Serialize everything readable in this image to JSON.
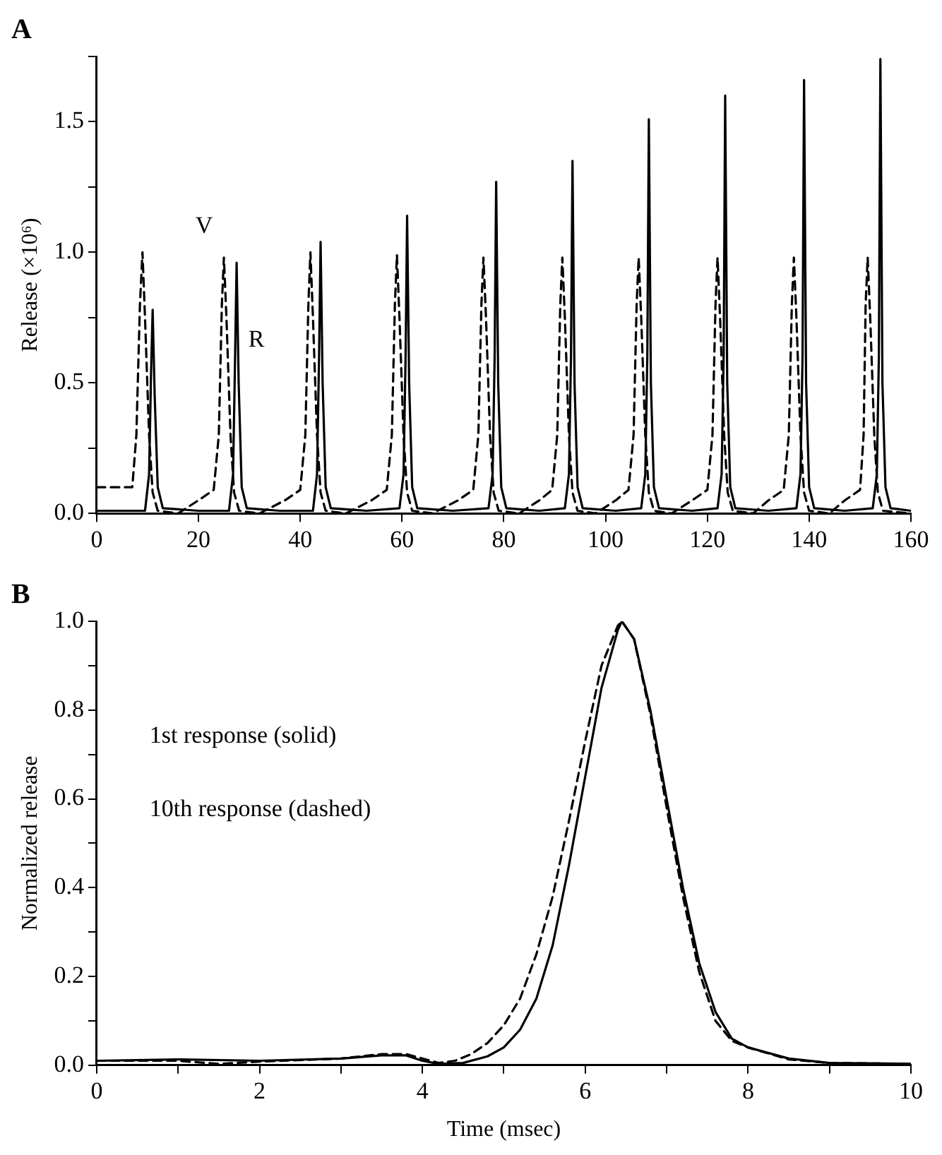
{
  "chart_data": [
    {
      "type": "line",
      "title": "A",
      "ylabel": "Release (×10⁶)",
      "xlim": [
        0,
        160
      ],
      "xticks": [
        0,
        20,
        40,
        60,
        80,
        100,
        120,
        140,
        160
      ],
      "ylim": [
        0,
        1.75
      ],
      "yticks": [
        {
          "value": 0,
          "label": "0.0"
        },
        {
          "value": 0.25,
          "label": null
        },
        0.5,
        {
          "value": 0.75,
          "label": null
        },
        {
          "value": 1,
          "label": "1.0"
        },
        {
          "value": 1.25,
          "label": null
        },
        1.5,
        {
          "value": 1.75,
          "label": null
        }
      ],
      "series": [
        {
          "name": "V",
          "color": "#000000",
          "line_style": "dashed",
          "x": [
            0,
            7,
            7.8,
            8.5,
            9,
            9.5,
            10.3,
            11,
            12,
            16,
            20,
            23,
            24,
            24.6,
            25,
            25.5,
            26.3,
            27,
            28,
            32,
            37,
            40,
            41,
            41.6,
            42,
            42.5,
            43.3,
            44,
            45,
            49,
            54,
            57,
            58,
            58.6,
            59,
            59.5,
            60.3,
            61,
            62,
            66,
            71,
            74,
            75,
            75.6,
            76,
            76.5,
            77.3,
            78,
            79,
            83,
            87,
            89.5,
            90.5,
            91.1,
            91.5,
            92,
            92.8,
            93.5,
            94.5,
            98,
            102,
            104.5,
            105.5,
            106.1,
            106.5,
            107,
            107.8,
            108.5,
            109.5,
            113,
            117,
            120,
            121,
            121.6,
            122,
            122.5,
            123.3,
            124,
            125,
            129,
            132,
            135,
            136,
            136.6,
            137,
            137.5,
            138.3,
            139,
            140,
            144,
            147,
            150,
            150.7,
            151.1,
            151.5,
            152,
            152.8,
            153.5,
            154.5,
            160
          ],
          "values": [
            0.1,
            0.1,
            0.3,
            0.8,
            1.0,
            0.75,
            0.3,
            0.08,
            0.01,
            0.0,
            0.05,
            0.09,
            0.3,
            0.8,
            0.98,
            0.75,
            0.3,
            0.08,
            0.01,
            0.0,
            0.05,
            0.09,
            0.3,
            0.8,
            1.0,
            0.75,
            0.3,
            0.08,
            0.01,
            0.0,
            0.05,
            0.09,
            0.3,
            0.8,
            0.99,
            0.75,
            0.3,
            0.08,
            0.01,
            0.0,
            0.05,
            0.09,
            0.3,
            0.8,
            0.98,
            0.75,
            0.3,
            0.08,
            0.01,
            0.0,
            0.05,
            0.09,
            0.3,
            0.8,
            0.98,
            0.75,
            0.3,
            0.08,
            0.01,
            0.0,
            0.05,
            0.09,
            0.3,
            0.8,
            0.98,
            0.75,
            0.3,
            0.08,
            0.01,
            0.0,
            0.05,
            0.09,
            0.3,
            0.8,
            0.98,
            0.75,
            0.3,
            0.08,
            0.01,
            0.0,
            0.05,
            0.09,
            0.3,
            0.8,
            0.98,
            0.75,
            0.3,
            0.08,
            0.01,
            0.0,
            0.05,
            0.09,
            0.3,
            0.8,
            0.98,
            0.75,
            0.3,
            0.08,
            0.01,
            0.0
          ]
        },
        {
          "name": "R",
          "color": "#000000",
          "line_style": "solid",
          "x": [
            0,
            9.5,
            10.3,
            10.7,
            11,
            11.4,
            12,
            13,
            20,
            26,
            26.8,
            27.2,
            27.5,
            27.9,
            28.5,
            29.5,
            36,
            42.5,
            43.3,
            43.7,
            44,
            44.4,
            45,
            46,
            53,
            59.5,
            60.3,
            60.7,
            61,
            61.4,
            62,
            63,
            70,
            77,
            77.8,
            78.2,
            78.5,
            78.9,
            79.5,
            80.5,
            87,
            92,
            92.8,
            93.2,
            93.5,
            93.9,
            94.5,
            95.5,
            102,
            107,
            107.8,
            108.2,
            108.5,
            108.9,
            109.5,
            110.5,
            117,
            122,
            122.8,
            123.2,
            123.5,
            123.9,
            124.5,
            125.5,
            132,
            137.5,
            138.3,
            138.7,
            139,
            139.4,
            140,
            141,
            147,
            152.5,
            153.3,
            153.7,
            154,
            154.4,
            155,
            156,
            160
          ],
          "values": [
            0.01,
            0.01,
            0.15,
            0.55,
            0.78,
            0.45,
            0.1,
            0.02,
            0.01,
            0.01,
            0.15,
            0.6,
            0.96,
            0.5,
            0.1,
            0.02,
            0.01,
            0.01,
            0.15,
            0.6,
            1.04,
            0.5,
            0.1,
            0.02,
            0.01,
            0.02,
            0.15,
            0.6,
            1.14,
            0.5,
            0.1,
            0.02,
            0.01,
            0.02,
            0.15,
            0.6,
            1.27,
            0.5,
            0.1,
            0.02,
            0.01,
            0.02,
            0.15,
            0.6,
            1.35,
            0.5,
            0.1,
            0.02,
            0.01,
            0.02,
            0.15,
            0.6,
            1.51,
            0.5,
            0.1,
            0.02,
            0.01,
            0.02,
            0.15,
            0.6,
            1.6,
            0.5,
            0.1,
            0.02,
            0.01,
            0.02,
            0.15,
            0.6,
            1.66,
            0.5,
            0.1,
            0.02,
            0.01,
            0.02,
            0.15,
            0.6,
            1.74,
            0.5,
            0.1,
            0.02,
            0.01
          ]
        }
      ]
    },
    {
      "type": "line",
      "title": "B",
      "xlabel": "Time (msec)",
      "ylabel": "Normalized release",
      "xlim": [
        0,
        10
      ],
      "xticks": [
        0,
        {
          "value": 1,
          "label": null
        },
        2,
        {
          "value": 3,
          "label": null
        },
        4,
        {
          "value": 5,
          "label": null
        },
        6,
        {
          "value": 7,
          "label": null
        },
        8,
        {
          "value": 9,
          "label": null
        },
        10
      ],
      "ylim": [
        0,
        1
      ],
      "yticks": [
        {
          "value": 0,
          "label": "0.0"
        },
        {
          "value": 0.1,
          "label": null
        },
        0.2,
        {
          "value": 0.3,
          "label": null
        },
        0.4,
        {
          "value": 0.5,
          "label": null
        },
        0.6,
        {
          "value": 0.7,
          "label": null
        },
        0.8,
        {
          "value": 0.9,
          "label": null
        },
        {
          "value": 1,
          "label": "1.0"
        }
      ],
      "annotations": [
        "1st response (solid)",
        "10th response (dashed)"
      ],
      "series": [
        {
          "color": "#000000",
          "line_style": "solid",
          "x": [
            0,
            1,
            2,
            3,
            3.5,
            3.8,
            4,
            4.2,
            4.5,
            4.8,
            5,
            5.2,
            5.4,
            5.6,
            5.8,
            6,
            6.2,
            6.4,
            6.45,
            6.6,
            6.8,
            7,
            7.2,
            7.4,
            7.6,
            7.8,
            8,
            8.5,
            9,
            10
          ],
          "values": [
            0.01,
            0.013,
            0.01,
            0.015,
            0.022,
            0.022,
            0.01,
            0.003,
            0.005,
            0.02,
            0.04,
            0.08,
            0.15,
            0.27,
            0.45,
            0.65,
            0.85,
            0.98,
            1.0,
            0.96,
            0.8,
            0.6,
            0.4,
            0.23,
            0.12,
            0.06,
            0.04,
            0.015,
            0.005,
            0.003
          ]
        },
        {
          "color": "#000000",
          "line_style": "dashed",
          "x": [
            0,
            1,
            1.5,
            2,
            3,
            3.5,
            3.8,
            4,
            4.2,
            4.4,
            4.6,
            4.8,
            5,
            5.2,
            5.4,
            5.6,
            5.8,
            6,
            6.2,
            6.4,
            6.45,
            6.6,
            6.8,
            7,
            7.2,
            7.4,
            7.6,
            7.8,
            8,
            8.5,
            9,
            10
          ],
          "values": [
            0.01,
            0.01,
            0.003,
            0.008,
            0.015,
            0.025,
            0.025,
            0.015,
            0.005,
            0.01,
            0.025,
            0.05,
            0.09,
            0.15,
            0.25,
            0.38,
            0.55,
            0.73,
            0.9,
            0.99,
            1.0,
            0.96,
            0.79,
            0.58,
            0.38,
            0.21,
            0.1,
            0.055,
            0.04,
            0.013,
            0.005,
            0.003
          ]
        }
      ]
    }
  ]
}
